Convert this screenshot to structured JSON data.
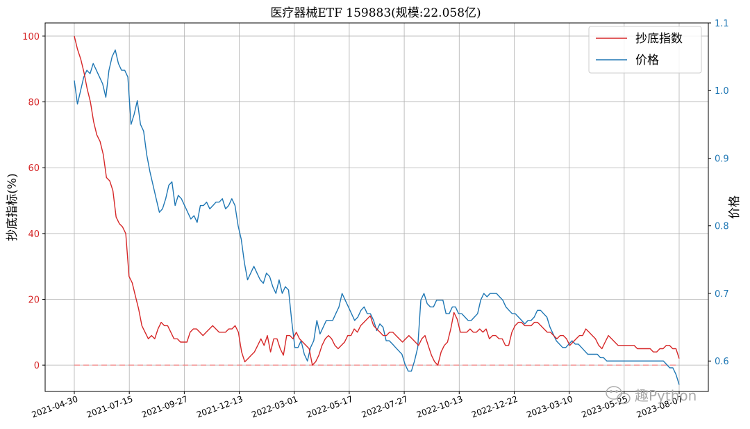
{
  "chart_data": {
    "type": "line",
    "title": "医疗器械ETF  159883(规模:22.058亿)",
    "ylabel_left": "抄底指标(%)",
    "ylabel_right": "价格",
    "ylim_left": [
      -8,
      104
    ],
    "ylim_right": [
      0.555,
      1.1
    ],
    "yticks_left": [
      0,
      20,
      40,
      60,
      80,
      100
    ],
    "yticks_right": [
      0.6,
      0.7,
      0.8,
      0.9,
      1.0,
      1.1
    ],
    "ytick_labels_right": [
      "0.6",
      "0.7",
      "0.8",
      "0.9",
      "1.0",
      "1.1"
    ],
    "x_tick_labels": [
      "2021-04-30",
      "2021-07-15",
      "2021-09-27",
      "2021-12-13",
      "2022-03-01",
      "2022-05-17",
      "2022-07-27",
      "2022-10-13",
      "2022-12-22",
      "2023-03-10",
      "2023-05-25",
      "2023-08-07"
    ],
    "grid": true,
    "legend_position": "top-right",
    "reference_line": {
      "value": 0,
      "axis": "left",
      "style": "dashed"
    },
    "colors": {
      "indicator": "#d62728",
      "price": "#1f77b4"
    },
    "series": [
      {
        "name": "抄底指数",
        "axis": "left",
        "color": "#d62728",
        "values": [
          100,
          96,
          93,
          89,
          84,
          80,
          74,
          70,
          68,
          64,
          57,
          56,
          53,
          45,
          43,
          42,
          40,
          27,
          25,
          21,
          17,
          12,
          10,
          8,
          9,
          8,
          11,
          13,
          12,
          12,
          10,
          8,
          8,
          7,
          7,
          7,
          10,
          11,
          11,
          10,
          9,
          10,
          11,
          12,
          11,
          10,
          10,
          10,
          11,
          11,
          12,
          10,
          4,
          1,
          2,
          3,
          4,
          6,
          8,
          6,
          9,
          4,
          8,
          8,
          5,
          3,
          9,
          9,
          8,
          10,
          8,
          7,
          6,
          5,
          0,
          1,
          3,
          6,
          8,
          9,
          8,
          6,
          5,
          6,
          7,
          9,
          9,
          11,
          10,
          12,
          13,
          14,
          15,
          12,
          11,
          10,
          9,
          9,
          10,
          10,
          9,
          8,
          7,
          8,
          9,
          8,
          7,
          6,
          8,
          9,
          6,
          3,
          1,
          0,
          4,
          6,
          7,
          11,
          16,
          14,
          10,
          10,
          10,
          11,
          10,
          10,
          11,
          10,
          11,
          8,
          9,
          9,
          8,
          8,
          6,
          6,
          10,
          12,
          13,
          13,
          12,
          12,
          12,
          13,
          13,
          12,
          11,
          10,
          10,
          9,
          8,
          9,
          9,
          8,
          6,
          7,
          8,
          9,
          9,
          11,
          10,
          9,
          8,
          6,
          5,
          7,
          9,
          8,
          7,
          6,
          6,
          6,
          6,
          6,
          6,
          5,
          5,
          5,
          5,
          5,
          4,
          4,
          5,
          5,
          6,
          6,
          5,
          5,
          2
        ]
      },
      {
        "name": "价格",
        "axis": "right",
        "color": "#1f77b4",
        "values": [
          1.015,
          0.98,
          1.0,
          1.02,
          1.03,
          1.025,
          1.04,
          1.03,
          1.02,
          1.01,
          0.99,
          1.03,
          1.05,
          1.06,
          1.04,
          1.03,
          1.03,
          1.02,
          0.95,
          0.965,
          0.985,
          0.95,
          0.94,
          0.905,
          0.88,
          0.86,
          0.84,
          0.82,
          0.825,
          0.84,
          0.86,
          0.865,
          0.83,
          0.845,
          0.84,
          0.83,
          0.82,
          0.81,
          0.815,
          0.805,
          0.83,
          0.83,
          0.835,
          0.825,
          0.83,
          0.835,
          0.835,
          0.84,
          0.825,
          0.83,
          0.84,
          0.83,
          0.8,
          0.78,
          0.745,
          0.72,
          0.73,
          0.74,
          0.73,
          0.72,
          0.715,
          0.73,
          0.725,
          0.71,
          0.7,
          0.72,
          0.7,
          0.71,
          0.705,
          0.66,
          0.62,
          0.62,
          0.63,
          0.61,
          0.6,
          0.62,
          0.63,
          0.66,
          0.64,
          0.65,
          0.66,
          0.66,
          0.66,
          0.67,
          0.68,
          0.7,
          0.69,
          0.68,
          0.67,
          0.66,
          0.665,
          0.675,
          0.68,
          0.67,
          0.67,
          0.66,
          0.645,
          0.655,
          0.65,
          0.63,
          0.63,
          0.625,
          0.62,
          0.615,
          0.61,
          0.595,
          0.585,
          0.585,
          0.6,
          0.62,
          0.69,
          0.7,
          0.685,
          0.68,
          0.68,
          0.69,
          0.69,
          0.69,
          0.67,
          0.67,
          0.68,
          0.68,
          0.67,
          0.67,
          0.665,
          0.66,
          0.66,
          0.665,
          0.67,
          0.69,
          0.7,
          0.695,
          0.7,
          0.7,
          0.7,
          0.695,
          0.69,
          0.68,
          0.675,
          0.67,
          0.67,
          0.665,
          0.66,
          0.655,
          0.66,
          0.66,
          0.665,
          0.675,
          0.675,
          0.67,
          0.665,
          0.65,
          0.64,
          0.63,
          0.625,
          0.62,
          0.62,
          0.625,
          0.63,
          0.625,
          0.625,
          0.62,
          0.615,
          0.61,
          0.61,
          0.61,
          0.61,
          0.605,
          0.605,
          0.6,
          0.6,
          0.6,
          0.6,
          0.6,
          0.6,
          0.6,
          0.6,
          0.6,
          0.6,
          0.6,
          0.6,
          0.6,
          0.6,
          0.6,
          0.6,
          0.6,
          0.6,
          0.6,
          0.595,
          0.59,
          0.59,
          0.58,
          0.565
        ]
      }
    ]
  },
  "watermark": {
    "text": "趣Python",
    "icon": "wechat-icon"
  }
}
